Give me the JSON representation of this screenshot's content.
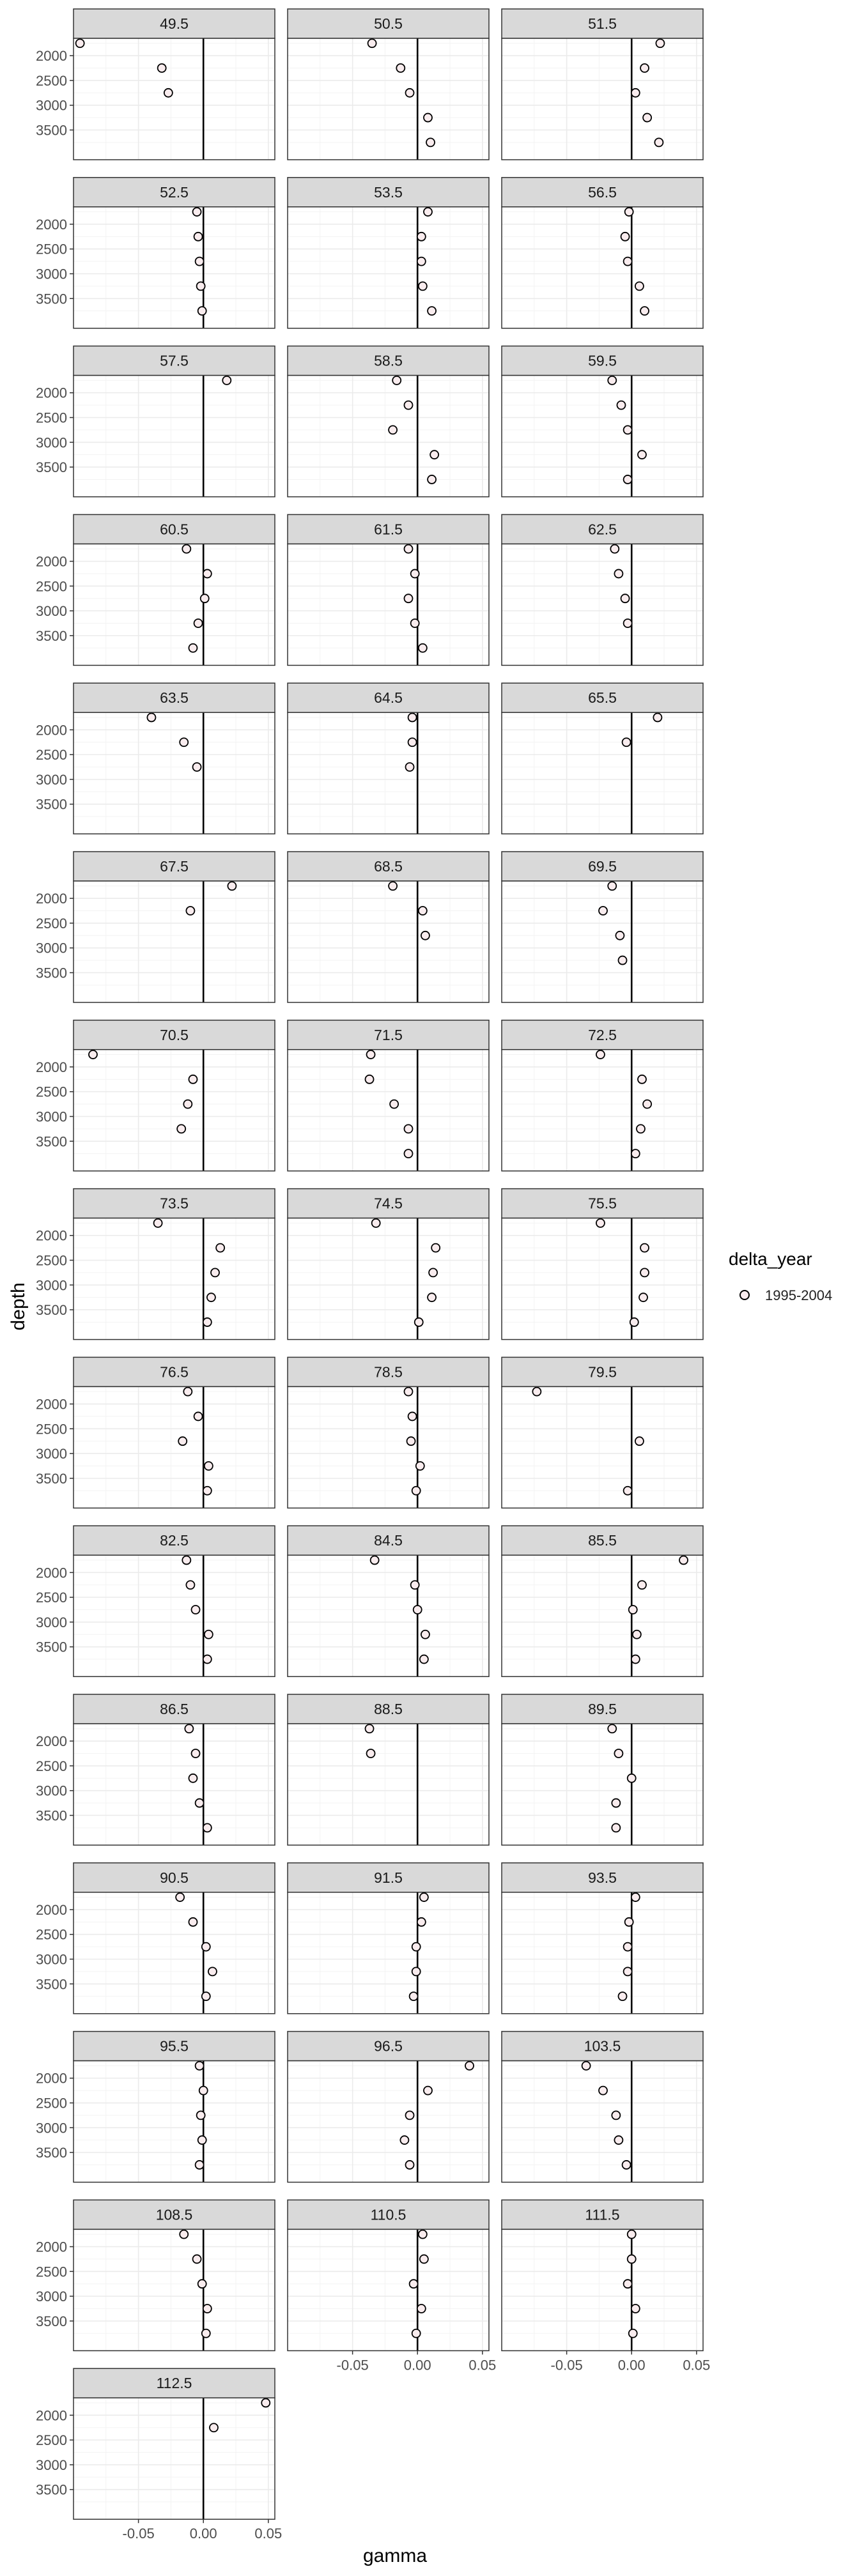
{
  "chart_data": {
    "type": "scatter",
    "facet_variable": "latitude",
    "xlabel": "gamma",
    "ylabel": "depth",
    "xlim": [
      -0.1,
      0.055
    ],
    "ylim": [
      1650,
      4100
    ],
    "y_reversed": true,
    "x_ticks": [
      -0.05,
      0.0,
      0.05
    ],
    "x_tick_labels": [
      "-0.05",
      "0.00",
      "0.05"
    ],
    "y_ticks": [
      2000,
      2500,
      3000,
      3500
    ],
    "y_tick_labels": [
      "2000",
      "2500",
      "3000",
      "3500"
    ],
    "vertical_reference_line": 0,
    "grid": true,
    "legend": {
      "title": "delta_year",
      "entries": [
        "1995-2004"
      ],
      "position": "right"
    },
    "colors": {
      "point_fill": "#f9ecee",
      "point_stroke": "#000000",
      "strip_bg": "#d9d9d9",
      "panel_border": "#333333",
      "grid": "#ebebeb"
    },
    "facets": [
      {
        "label": "49.5",
        "points": [
          [
            -0.095,
            1750
          ],
          [
            -0.032,
            2250
          ],
          [
            -0.027,
            2750
          ]
        ]
      },
      {
        "label": "50.5",
        "points": [
          [
            -0.035,
            1750
          ],
          [
            -0.013,
            2250
          ],
          [
            -0.006,
            2750
          ],
          [
            0.008,
            3250
          ],
          [
            0.01,
            3750
          ]
        ]
      },
      {
        "label": "51.5",
        "points": [
          [
            0.022,
            1750
          ],
          [
            0.01,
            2250
          ],
          [
            0.003,
            2750
          ],
          [
            0.012,
            3250
          ],
          [
            0.021,
            3750
          ]
        ]
      },
      {
        "label": "52.5",
        "points": [
          [
            -0.005,
            1750
          ],
          [
            -0.004,
            2250
          ],
          [
            -0.003,
            2750
          ],
          [
            -0.002,
            3250
          ],
          [
            -0.001,
            3750
          ]
        ]
      },
      {
        "label": "53.5",
        "points": [
          [
            0.008,
            1750
          ],
          [
            0.003,
            2250
          ],
          [
            0.003,
            2750
          ],
          [
            0.004,
            3250
          ],
          [
            0.011,
            3750
          ]
        ]
      },
      {
        "label": "56.5",
        "points": [
          [
            -0.002,
            1750
          ],
          [
            -0.005,
            2250
          ],
          [
            -0.003,
            2750
          ],
          [
            0.006,
            3250
          ],
          [
            0.01,
            3750
          ]
        ]
      },
      {
        "label": "57.5",
        "points": [
          [
            0.018,
            1750
          ]
        ]
      },
      {
        "label": "58.5",
        "points": [
          [
            -0.016,
            1750
          ],
          [
            -0.007,
            2250
          ],
          [
            -0.019,
            2750
          ],
          [
            0.013,
            3250
          ],
          [
            0.011,
            3750
          ]
        ]
      },
      {
        "label": "59.5",
        "points": [
          [
            -0.015,
            1750
          ],
          [
            -0.008,
            2250
          ],
          [
            -0.003,
            2750
          ],
          [
            0.008,
            3250
          ],
          [
            -0.003,
            3750
          ]
        ]
      },
      {
        "label": "60.5",
        "points": [
          [
            -0.013,
            1750
          ],
          [
            0.003,
            2250
          ],
          [
            0.001,
            2750
          ],
          [
            -0.004,
            3250
          ],
          [
            -0.008,
            3750
          ]
        ]
      },
      {
        "label": "61.5",
        "points": [
          [
            -0.007,
            1750
          ],
          [
            -0.002,
            2250
          ],
          [
            -0.007,
            2750
          ],
          [
            -0.002,
            3250
          ],
          [
            0.004,
            3750
          ]
        ]
      },
      {
        "label": "62.5",
        "points": [
          [
            -0.013,
            1750
          ],
          [
            -0.01,
            2250
          ],
          [
            -0.005,
            2750
          ],
          [
            -0.003,
            3250
          ]
        ]
      },
      {
        "label": "63.5",
        "points": [
          [
            -0.04,
            1750
          ],
          [
            -0.015,
            2250
          ],
          [
            -0.005,
            2750
          ]
        ]
      },
      {
        "label": "64.5",
        "points": [
          [
            -0.004,
            1750
          ],
          [
            -0.004,
            2250
          ],
          [
            -0.006,
            2750
          ]
        ]
      },
      {
        "label": "65.5",
        "points": [
          [
            0.02,
            1750
          ],
          [
            -0.004,
            2250
          ]
        ]
      },
      {
        "label": "67.5",
        "points": [
          [
            0.022,
            1750
          ],
          [
            -0.01,
            2250
          ]
        ]
      },
      {
        "label": "68.5",
        "points": [
          [
            -0.019,
            1750
          ],
          [
            0.004,
            2250
          ],
          [
            0.006,
            2750
          ]
        ]
      },
      {
        "label": "69.5",
        "points": [
          [
            -0.015,
            1750
          ],
          [
            -0.022,
            2250
          ],
          [
            -0.009,
            2750
          ],
          [
            -0.007,
            3250
          ]
        ]
      },
      {
        "label": "70.5",
        "points": [
          [
            -0.085,
            1750
          ],
          [
            -0.008,
            2250
          ],
          [
            -0.012,
            2750
          ],
          [
            -0.017,
            3250
          ]
        ]
      },
      {
        "label": "71.5",
        "points": [
          [
            -0.036,
            1750
          ],
          [
            -0.037,
            2250
          ],
          [
            -0.018,
            2750
          ],
          [
            -0.007,
            3250
          ],
          [
            -0.007,
            3750
          ]
        ]
      },
      {
        "label": "72.5",
        "points": [
          [
            -0.024,
            1750
          ],
          [
            0.008,
            2250
          ],
          [
            0.012,
            2750
          ],
          [
            0.007,
            3250
          ],
          [
            0.003,
            3750
          ]
        ]
      },
      {
        "label": "73.5",
        "points": [
          [
            -0.035,
            1750
          ],
          [
            0.013,
            2250
          ],
          [
            0.009,
            2750
          ],
          [
            0.006,
            3250
          ],
          [
            0.003,
            3750
          ]
        ]
      },
      {
        "label": "74.5",
        "points": [
          [
            -0.032,
            1750
          ],
          [
            0.014,
            2250
          ],
          [
            0.012,
            2750
          ],
          [
            0.011,
            3250
          ],
          [
            0.001,
            3750
          ]
        ]
      },
      {
        "label": "75.5",
        "points": [
          [
            -0.024,
            1750
          ],
          [
            0.01,
            2250
          ],
          [
            0.01,
            2750
          ],
          [
            0.009,
            3250
          ],
          [
            0.002,
            3750
          ]
        ]
      },
      {
        "label": "76.5",
        "points": [
          [
            -0.012,
            1750
          ],
          [
            -0.004,
            2250
          ],
          [
            -0.016,
            2750
          ],
          [
            0.004,
            3250
          ],
          [
            0.003,
            3750
          ]
        ]
      },
      {
        "label": "78.5",
        "points": [
          [
            -0.007,
            1750
          ],
          [
            -0.004,
            2250
          ],
          [
            -0.005,
            2750
          ],
          [
            0.002,
            3250
          ],
          [
            -0.001,
            3750
          ]
        ]
      },
      {
        "label": "79.5",
        "points": [
          [
            -0.073,
            1750
          ],
          [
            0.006,
            2750
          ],
          [
            -0.003,
            3750
          ]
        ]
      },
      {
        "label": "82.5",
        "points": [
          [
            -0.013,
            1750
          ],
          [
            -0.01,
            2250
          ],
          [
            -0.006,
            2750
          ],
          [
            0.004,
            3250
          ],
          [
            0.003,
            3750
          ]
        ]
      },
      {
        "label": "84.5",
        "points": [
          [
            -0.033,
            1750
          ],
          [
            -0.002,
            2250
          ],
          [
            0.0,
            2750
          ],
          [
            0.006,
            3250
          ],
          [
            0.005,
            3750
          ]
        ]
      },
      {
        "label": "85.5",
        "points": [
          [
            0.04,
            1750
          ],
          [
            0.008,
            2250
          ],
          [
            0.001,
            2750
          ],
          [
            0.004,
            3250
          ],
          [
            0.003,
            3750
          ]
        ]
      },
      {
        "label": "86.5",
        "points": [
          [
            -0.011,
            1750
          ],
          [
            -0.006,
            2250
          ],
          [
            -0.008,
            2750
          ],
          [
            -0.003,
            3250
          ],
          [
            0.003,
            3750
          ]
        ]
      },
      {
        "label": "88.5",
        "points": [
          [
            -0.037,
            1750
          ],
          [
            -0.036,
            2250
          ]
        ]
      },
      {
        "label": "89.5",
        "points": [
          [
            -0.015,
            1750
          ],
          [
            -0.01,
            2250
          ],
          [
            0.0,
            2750
          ],
          [
            -0.012,
            3250
          ],
          [
            -0.012,
            3750
          ]
        ]
      },
      {
        "label": "90.5",
        "points": [
          [
            -0.018,
            1750
          ],
          [
            -0.008,
            2250
          ],
          [
            0.002,
            2750
          ],
          [
            0.007,
            3250
          ],
          [
            0.002,
            3750
          ]
        ]
      },
      {
        "label": "91.5",
        "points": [
          [
            0.005,
            1750
          ],
          [
            0.003,
            2250
          ],
          [
            -0.001,
            2750
          ],
          [
            -0.001,
            3250
          ],
          [
            -0.003,
            3750
          ]
        ]
      },
      {
        "label": "93.5",
        "points": [
          [
            0.003,
            1750
          ],
          [
            -0.002,
            2250
          ],
          [
            -0.003,
            2750
          ],
          [
            -0.003,
            3250
          ],
          [
            -0.007,
            3750
          ]
        ]
      },
      {
        "label": "95.5",
        "points": [
          [
            -0.003,
            1750
          ],
          [
            0.0,
            2250
          ],
          [
            -0.002,
            2750
          ],
          [
            -0.001,
            3250
          ],
          [
            -0.003,
            3750
          ]
        ]
      },
      {
        "label": "96.5",
        "points": [
          [
            0.04,
            1750
          ],
          [
            0.008,
            2250
          ],
          [
            -0.006,
            2750
          ],
          [
            -0.01,
            3250
          ],
          [
            -0.006,
            3750
          ]
        ]
      },
      {
        "label": "103.5",
        "points": [
          [
            -0.035,
            1750
          ],
          [
            -0.022,
            2250
          ],
          [
            -0.012,
            2750
          ],
          [
            -0.01,
            3250
          ],
          [
            -0.004,
            3750
          ]
        ]
      },
      {
        "label": "108.5",
        "points": [
          [
            -0.015,
            1750
          ],
          [
            -0.005,
            2250
          ],
          [
            -0.001,
            2750
          ],
          [
            0.003,
            3250
          ],
          [
            0.002,
            3750
          ]
        ]
      },
      {
        "label": "110.5",
        "points": [
          [
            0.004,
            1750
          ],
          [
            0.005,
            2250
          ],
          [
            -0.003,
            2750
          ],
          [
            0.003,
            3250
          ],
          [
            -0.001,
            3750
          ]
        ]
      },
      {
        "label": "111.5",
        "points": [
          [
            0.0,
            1750
          ],
          [
            0.0,
            2250
          ],
          [
            -0.003,
            2750
          ],
          [
            0.003,
            3250
          ],
          [
            0.001,
            3750
          ]
        ]
      },
      {
        "label": "112.5",
        "points": [
          [
            0.048,
            1750
          ],
          [
            0.008,
            2250
          ]
        ]
      }
    ]
  }
}
